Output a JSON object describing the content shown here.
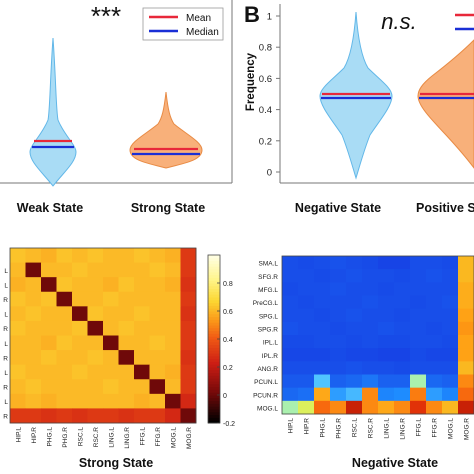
{
  "panel_letters": {
    "b": "B"
  },
  "colors": {
    "mean": "#e8283a",
    "median": "#1a2fd6",
    "violin_blue": "#a9dcf5",
    "violin_orange": "#f8b07a",
    "violin_blue_edge": "#62b7e8",
    "violin_orange_edge": "#e88b45"
  },
  "chart_data": [
    {
      "type": "violin",
      "panel": "A",
      "annotation": "***",
      "legend": [
        "Mean",
        "Median"
      ],
      "legend_position": "top-right",
      "categories": [
        "Weak State",
        "Strong State"
      ],
      "series": [
        {
          "category": "Weak State",
          "color": "blue",
          "mean": 0.22,
          "median": 0.19,
          "range": [
            0.0,
            1.0
          ]
        },
        {
          "category": "Strong State",
          "color": "orange",
          "mean": 0.2,
          "median": 0.17,
          "range": [
            0.05,
            0.5
          ]
        }
      ]
    },
    {
      "type": "violin",
      "panel": "B",
      "annotation": "n.s.",
      "ylabel": "Frequency",
      "ylim": [
        0,
        1
      ],
      "yticks": [
        "0",
        "0.2",
        "0.4",
        "0.6",
        "0.8",
        "1"
      ],
      "categories": [
        "Negative State",
        "Positive State"
      ],
      "series": [
        {
          "category": "Negative State",
          "color": "blue",
          "mean": 0.5,
          "median": 0.49,
          "range": [
            0.05,
            1.0
          ]
        },
        {
          "category": "Positive State",
          "color": "orange",
          "mean": 0.5,
          "median": 0.49,
          "range": [
            0.05,
            1.0
          ]
        }
      ]
    },
    {
      "type": "heatmap",
      "title": "Strong State",
      "row_labels_visible": [
        "L",
        "L",
        "R",
        "L",
        "R",
        "L",
        "R",
        "L",
        "R",
        "L",
        "R"
      ],
      "x_labels": [
        "HIP.L",
        "HIP.R",
        "PHG.L",
        "PHG.R",
        "RSC.L",
        "RSC.R",
        "LING.L",
        "LING.R",
        "FFG.L",
        "FFG.R",
        "MOG.L",
        "MOG.R"
      ],
      "colorbar_ticks": [
        "0.8",
        "0.6",
        "0.4",
        "0.2",
        "0",
        "-0.2"
      ],
      "colorbar_range": [
        -0.2,
        1.0
      ],
      "values": [
        [
          0.62,
          0.6,
          0.58,
          0.62,
          0.6,
          0.62,
          0.6,
          0.6,
          0.62,
          0.6,
          0.58,
          0.3
        ],
        [
          0.6,
          0.0,
          0.6,
          0.6,
          0.62,
          0.6,
          0.6,
          0.6,
          0.6,
          0.62,
          0.6,
          0.3
        ],
        [
          0.58,
          0.6,
          0.0,
          0.62,
          0.6,
          0.6,
          0.58,
          0.62,
          0.6,
          0.6,
          0.58,
          0.28
        ],
        [
          0.62,
          0.6,
          0.62,
          0.0,
          0.6,
          0.6,
          0.62,
          0.6,
          0.6,
          0.6,
          0.6,
          0.3
        ],
        [
          0.6,
          0.62,
          0.6,
          0.6,
          0.0,
          0.62,
          0.6,
          0.6,
          0.62,
          0.6,
          0.6,
          0.28
        ],
        [
          0.62,
          0.6,
          0.6,
          0.6,
          0.62,
          0.0,
          0.6,
          0.62,
          0.6,
          0.6,
          0.6,
          0.3
        ],
        [
          0.6,
          0.6,
          0.58,
          0.62,
          0.6,
          0.6,
          0.0,
          0.6,
          0.6,
          0.62,
          0.6,
          0.3
        ],
        [
          0.6,
          0.6,
          0.62,
          0.6,
          0.6,
          0.62,
          0.6,
          0.0,
          0.6,
          0.6,
          0.6,
          0.28
        ],
        [
          0.62,
          0.6,
          0.6,
          0.6,
          0.62,
          0.6,
          0.6,
          0.6,
          0.0,
          0.6,
          0.58,
          0.3
        ],
        [
          0.6,
          0.62,
          0.6,
          0.6,
          0.6,
          0.6,
          0.62,
          0.6,
          0.6,
          0.0,
          0.6,
          0.3
        ],
        [
          0.58,
          0.6,
          0.58,
          0.6,
          0.6,
          0.6,
          0.6,
          0.6,
          0.58,
          0.6,
          0.0,
          0.25
        ],
        [
          0.3,
          0.3,
          0.28,
          0.3,
          0.28,
          0.3,
          0.3,
          0.28,
          0.3,
          0.3,
          0.25,
          0.0
        ]
      ]
    },
    {
      "type": "heatmap",
      "title": "Negative State",
      "y_labels": [
        "SMA.L",
        "SFG.R",
        "MFG.L",
        "PreCG.L",
        "SPG.L",
        "SPG.R",
        "IPL.L",
        "IPL.R",
        "ANG.R",
        "PCUN.L",
        "PCUN.R",
        "MOG.L"
      ],
      "x_labels": [
        "HIP.L",
        "HIP.R",
        "PHG.L",
        "PHG.R",
        "RSC.L",
        "RSC.R",
        "LING.L",
        "LING.R",
        "FFG.L",
        "FFG.R",
        "MOG.L",
        "MOG.R"
      ],
      "colorbar_range": [
        -0.2,
        1.0
      ],
      "values": [
        [
          0.05,
          0.04,
          0.05,
          0.06,
          0.05,
          0.04,
          0.02,
          0.02,
          0.05,
          0.05,
          0.04,
          0.62
        ],
        [
          0.05,
          0.05,
          0.04,
          0.05,
          0.06,
          0.05,
          0.05,
          0.04,
          0.05,
          0.06,
          0.05,
          0.62
        ],
        [
          0.04,
          0.05,
          0.05,
          0.06,
          0.05,
          0.05,
          0.04,
          0.05,
          0.05,
          0.05,
          0.05,
          0.64
        ],
        [
          0.05,
          0.04,
          0.05,
          0.05,
          0.05,
          0.06,
          0.05,
          0.05,
          0.04,
          0.05,
          0.06,
          0.64
        ],
        [
          0.05,
          0.05,
          0.04,
          0.05,
          0.06,
          0.05,
          0.05,
          0.04,
          0.05,
          0.05,
          0.05,
          0.66
        ],
        [
          0.06,
          0.05,
          0.05,
          0.04,
          0.05,
          0.05,
          0.06,
          0.05,
          0.05,
          0.04,
          0.05,
          0.68
        ],
        [
          0.04,
          0.04,
          0.05,
          0.05,
          0.04,
          0.05,
          0.04,
          0.04,
          0.05,
          0.05,
          0.04,
          0.66
        ],
        [
          0.03,
          0.03,
          0.03,
          0.04,
          0.03,
          0.03,
          0.02,
          0.02,
          0.04,
          0.03,
          0.03,
          0.66
        ],
        [
          0.05,
          0.05,
          0.05,
          0.05,
          0.06,
          0.05,
          0.05,
          0.04,
          0.05,
          0.05,
          0.05,
          0.62
        ],
        [
          0.08,
          0.08,
          0.32,
          0.1,
          0.12,
          0.16,
          0.1,
          0.1,
          0.45,
          0.12,
          0.1,
          0.7
        ],
        [
          0.12,
          0.14,
          0.65,
          0.25,
          0.3,
          0.7,
          0.2,
          0.22,
          0.72,
          0.25,
          0.2,
          0.75
        ],
        [
          0.45,
          0.5,
          0.75,
          0.7,
          0.9,
          0.7,
          0.65,
          0.7,
          0.85,
          0.7,
          0.62,
          0.9
        ]
      ]
    }
  ]
}
